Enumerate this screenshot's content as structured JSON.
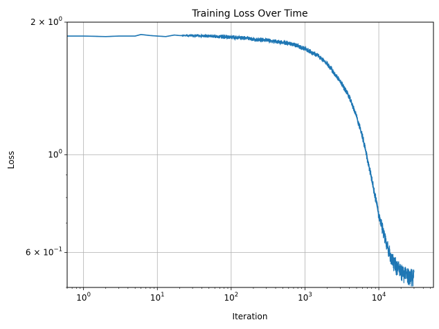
{
  "chart_data": {
    "type": "line",
    "title": "Training Loss Over Time",
    "xlabel": "Iteration",
    "ylabel": "Loss",
    "x_scale": "log",
    "y_scale": "log",
    "xlim": [
      0.6,
      55000
    ],
    "ylim": [
      0.5,
      2.0
    ],
    "grid": true,
    "x_ticks": [
      {
        "value": 1,
        "base": "10",
        "exp": "0"
      },
      {
        "value": 10,
        "base": "10",
        "exp": "1"
      },
      {
        "value": 100,
        "base": "10",
        "exp": "2"
      },
      {
        "value": 1000,
        "base": "10",
        "exp": "3"
      },
      {
        "value": 10000,
        "base": "10",
        "exp": "4"
      }
    ],
    "y_ticks": [
      {
        "value": 2.0,
        "base": "2 × 10",
        "exp": "0"
      },
      {
        "value": 1.0,
        "base": "10",
        "exp": "0"
      },
      {
        "value": 0.6,
        "base": "6 × 10",
        "exp": "−1"
      }
    ],
    "series": [
      {
        "color": "#1f77b4",
        "x": [
          0.6,
          1,
          2,
          3,
          5,
          6,
          8,
          10,
          13,
          17,
          20,
          30,
          40,
          50,
          70,
          100,
          150,
          200,
          300,
          500,
          700,
          1000,
          1500,
          2000,
          3000,
          4000,
          5000,
          6000,
          7000,
          8000,
          9000,
          10000,
          12000,
          15000,
          20000,
          25000,
          30000
        ],
        "y": [
          1.86,
          1.86,
          1.855,
          1.86,
          1.86,
          1.875,
          1.865,
          1.86,
          1.855,
          1.87,
          1.865,
          1.865,
          1.86,
          1.86,
          1.855,
          1.85,
          1.84,
          1.83,
          1.82,
          1.8,
          1.78,
          1.74,
          1.68,
          1.61,
          1.47,
          1.35,
          1.22,
          1.1,
          0.98,
          0.88,
          0.8,
          0.73,
          0.65,
          0.58,
          0.545,
          0.535,
          0.53
        ],
        "noise_lower": [
          0,
          0,
          0,
          0,
          0,
          0,
          0,
          0,
          0,
          0,
          0,
          0.012,
          0.015,
          0.015,
          0.018,
          0.02,
          0.02,
          0.02,
          0.02,
          0.02,
          0.02,
          0.02,
          0.02,
          0.02,
          0.02,
          0.02,
          0.02,
          0.02,
          0.02,
          0.02,
          0.02,
          0.02,
          0.025,
          0.03,
          0.03,
          0.03,
          0.03
        ],
        "noise_upper": [
          0,
          0,
          0,
          0,
          0,
          0,
          0,
          0,
          0,
          0,
          0,
          0.012,
          0.015,
          0.015,
          0.018,
          0.02,
          0.02,
          0.02,
          0.02,
          0.02,
          0.02,
          0.02,
          0.02,
          0.02,
          0.02,
          0.02,
          0.02,
          0.02,
          0.02,
          0.02,
          0.02,
          0.02,
          0.02,
          0.02,
          0.02,
          0.02,
          0.02
        ]
      }
    ]
  }
}
